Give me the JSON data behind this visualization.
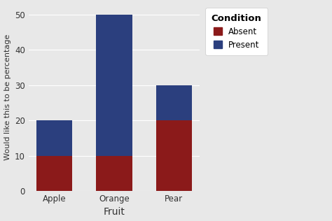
{
  "categories": [
    "Apple",
    "Orange",
    "Pear"
  ],
  "absent_values": [
    10,
    10,
    20
  ],
  "present_values": [
    10,
    40,
    10
  ],
  "absent_color": "#8B1A1A",
  "present_color": "#2B3F7E",
  "xlabel": "Fruit",
  "ylabel": "Would like this to be percentage",
  "ylim": [
    0,
    53
  ],
  "yticks": [
    0,
    10,
    20,
    30,
    40,
    50
  ],
  "legend_title": "Condition",
  "legend_labels": [
    "Absent",
    "Present"
  ],
  "outer_bg": "#E8E8E8",
  "panel_bg": "#E8E8E8",
  "legend_bg": "#FFFFFF",
  "grid_color": "#FFFFFF",
  "bar_width": 0.6
}
